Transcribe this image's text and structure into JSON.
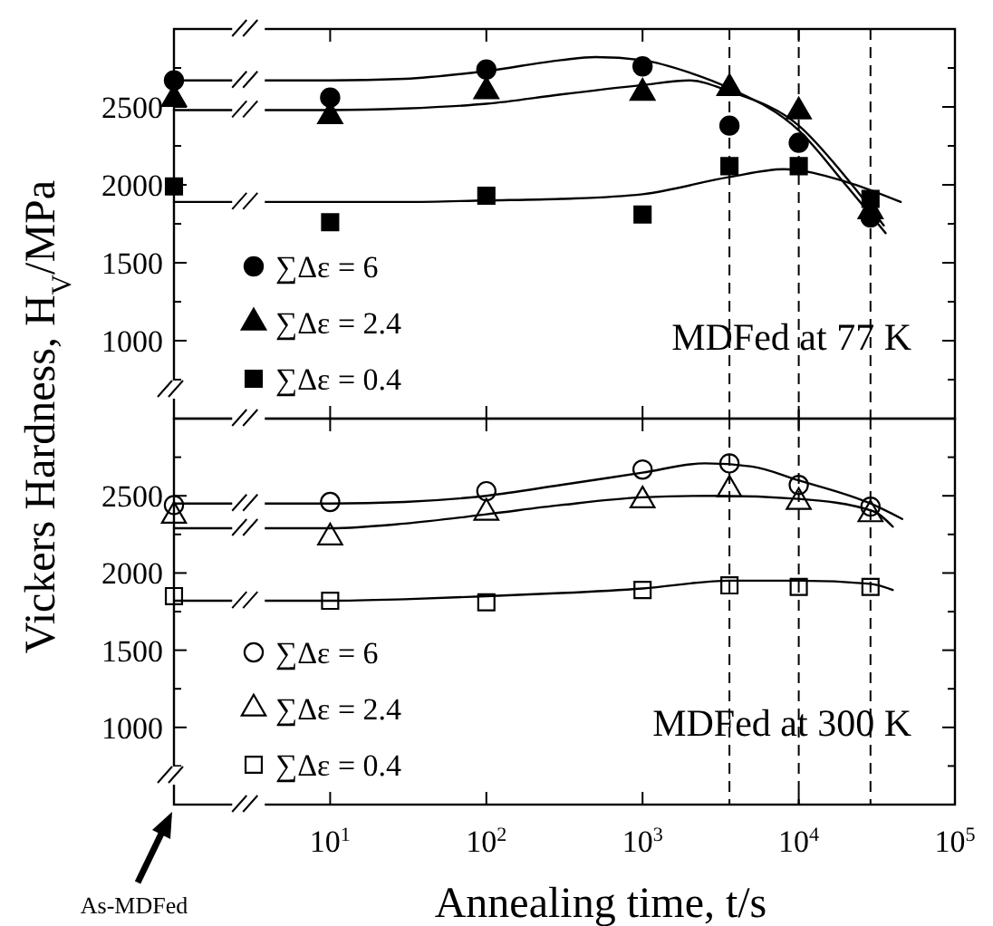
{
  "chart_data": [
    {
      "type": "scatter",
      "ylabel": "Vickers Hardness, H$_{V}$/MPa",
      "annotations": [
        "MDFed at 77 K"
      ],
      "legend": "bottom left",
      "tick_labels": "y",
      "xlim": [
        1,
        100000
      ],
      "log": "x",
      "xticks": [
        {
          "value": 10,
          "label": null
        },
        {
          "value": 100,
          "label": null
        },
        {
          "value": 1000,
          "label": null
        },
        {
          "value": 10000,
          "label": null
        },
        {
          "value": 100000,
          "label": null
        }
      ],
      "ylim": [
        500,
        3000
      ],
      "yticks": [
        {
          "value": 750,
          "label": null
        },
        1000,
        {
          "value": 1250,
          "label": null
        },
        1500,
        {
          "value": 1750,
          "label": null
        },
        2000,
        {
          "value": 2250,
          "label": null
        },
        2500,
        {
          "value": 2750,
          "label": null
        }
      ],
      "ref_lines": [
        {
          "axis": "x",
          "value": 3600,
          "color": "#000000",
          "line_style": "dashed"
        },
        {
          "axis": "x",
          "value": 10000,
          "color": "#000000",
          "line_style": "dashed"
        },
        {
          "axis": "x",
          "value": 28800,
          "color": "#000000",
          "line_style": "dashed"
        }
      ],
      "series": [
        {
          "type": "scatter",
          "name": "∑Δε = 6",
          "color": "#000000",
          "marker": "circle",
          "x": [
            1,
            10,
            100,
            1000,
            3600,
            10000,
            28800
          ],
          "values": [
            2670,
            2560,
            2740,
            2760,
            2380,
            2270,
            1790
          ]
        },
        {
          "type": "scatter",
          "name": "∑Δε = 2.4",
          "color": "#000000",
          "marker": "triangle",
          "x": [
            1,
            10,
            100,
            1000,
            3600,
            10000,
            28800
          ],
          "values": [
            2550,
            2440,
            2600,
            2590,
            2620,
            2470,
            1830
          ]
        },
        {
          "type": "scatter",
          "name": "∑Δε = 0.4",
          "color": "#000000",
          "marker": "square",
          "x": [
            1,
            10,
            100,
            1000,
            3600,
            10000,
            28800
          ],
          "values": [
            1990,
            1760,
            1930,
            1810,
            2120,
            2120,
            1910
          ]
        },
        {
          "type": "line",
          "color": "#000000",
          "marker": "none",
          "line_style": "solid",
          "x": [
            1,
            10,
            30,
            100,
            300,
            500,
            1000,
            2000,
            3600,
            10000,
            20000,
            36000
          ],
          "values": [
            2670,
            2670,
            2680,
            2730,
            2800,
            2820,
            2800,
            2720,
            2620,
            2350,
            2000,
            1690
          ]
        },
        {
          "type": "line",
          "color": "#000000",
          "marker": "none",
          "line_style": "solid",
          "x": [
            1,
            10,
            30,
            100,
            300,
            1000,
            2000,
            3600,
            10000,
            20000,
            35000
          ],
          "values": [
            2480,
            2480,
            2490,
            2520,
            2580,
            2640,
            2670,
            2600,
            2380,
            2050,
            1740
          ]
        },
        {
          "type": "line",
          "color": "#000000",
          "marker": "none",
          "line_style": "solid",
          "x": [
            1,
            10,
            30,
            100,
            300,
            1000,
            3600,
            8000,
            20000,
            45000
          ],
          "values": [
            1890,
            1890,
            1890,
            1900,
            1910,
            1940,
            2050,
            2100,
            2020,
            1890
          ]
        }
      ]
    },
    {
      "type": "scatter",
      "xlabel": "Annealing time, t/s",
      "annotations": [
        "MDFed at 300 K",
        "As-MDFed"
      ],
      "legend": "bottom left",
      "xlim": [
        1,
        100000
      ],
      "log": "x",
      "xticks": [
        {
          "value": 10,
          "label": "10$^{1}$"
        },
        {
          "value": 100,
          "label": "10$^{2}$"
        },
        {
          "value": 1000,
          "label": "10$^{3}$"
        },
        {
          "value": 10000,
          "label": "10$^{4}$"
        },
        {
          "value": 100000,
          "label": "10$^{5}$"
        }
      ],
      "ylim": [
        500,
        3000
      ],
      "yticks": [
        {
          "value": 750,
          "label": null
        },
        1000,
        {
          "value": 1250,
          "label": null
        },
        1500,
        {
          "value": 1750,
          "label": null
        },
        2000,
        {
          "value": 2250,
          "label": null
        },
        2500,
        {
          "value": 2750,
          "label": null
        }
      ],
      "ref_lines": [
        {
          "axis": "x",
          "value": 3600,
          "color": "#000000",
          "line_style": "dashed"
        },
        {
          "axis": "x",
          "value": 10000,
          "color": "#000000",
          "line_style": "dashed"
        },
        {
          "axis": "x",
          "value": 28800,
          "color": "#000000",
          "line_style": "dashed"
        }
      ],
      "series": [
        {
          "type": "scatter",
          "name": "∑Δε = 6",
          "color": "#000000",
          "marker": "circle",
          "x": [
            1,
            10,
            100,
            1000,
            3600,
            10000,
            28800
          ],
          "values": [
            2440,
            2460,
            2530,
            2670,
            2710,
            2570,
            2430
          ]
        },
        {
          "type": "scatter",
          "name": "∑Δε = 2.4",
          "color": "#000000",
          "marker": "triangle",
          "x": [
            1,
            10,
            100,
            1000,
            3600,
            10000,
            28800
          ],
          "values": [
            2370,
            2230,
            2390,
            2470,
            2540,
            2460,
            2380
          ]
        },
        {
          "type": "scatter",
          "name": "∑Δε = 0.4",
          "color": "#000000",
          "marker": "square",
          "x": [
            1,
            10,
            100,
            1000,
            3600,
            10000,
            28800
          ],
          "values": [
            1850,
            1820,
            1810,
            1890,
            1920,
            1910,
            1910
          ]
        },
        {
          "type": "line",
          "color": "#000000",
          "marker": "none",
          "line_style": "solid",
          "x": [
            1,
            10,
            30,
            100,
            300,
            1000,
            2500,
            5000,
            10000,
            28800,
            46000
          ],
          "values": [
            2450,
            2450,
            2460,
            2500,
            2570,
            2650,
            2710,
            2690,
            2600,
            2450,
            2350
          ]
        },
        {
          "type": "line",
          "color": "#000000",
          "marker": "none",
          "line_style": "solid",
          "x": [
            1,
            10,
            30,
            100,
            300,
            1000,
            3000,
            10000,
            30000,
            40000
          ],
          "values": [
            2290,
            2290,
            2320,
            2380,
            2440,
            2490,
            2500,
            2480,
            2400,
            2300
          ]
        },
        {
          "type": "line",
          "color": "#000000",
          "marker": "none",
          "line_style": "solid",
          "x": [
            1,
            10,
            30,
            100,
            300,
            1000,
            3600,
            10000,
            28800,
            40000
          ],
          "values": [
            1820,
            1820,
            1830,
            1850,
            1870,
            1900,
            1950,
            1950,
            1930,
            1890
          ]
        }
      ]
    }
  ]
}
